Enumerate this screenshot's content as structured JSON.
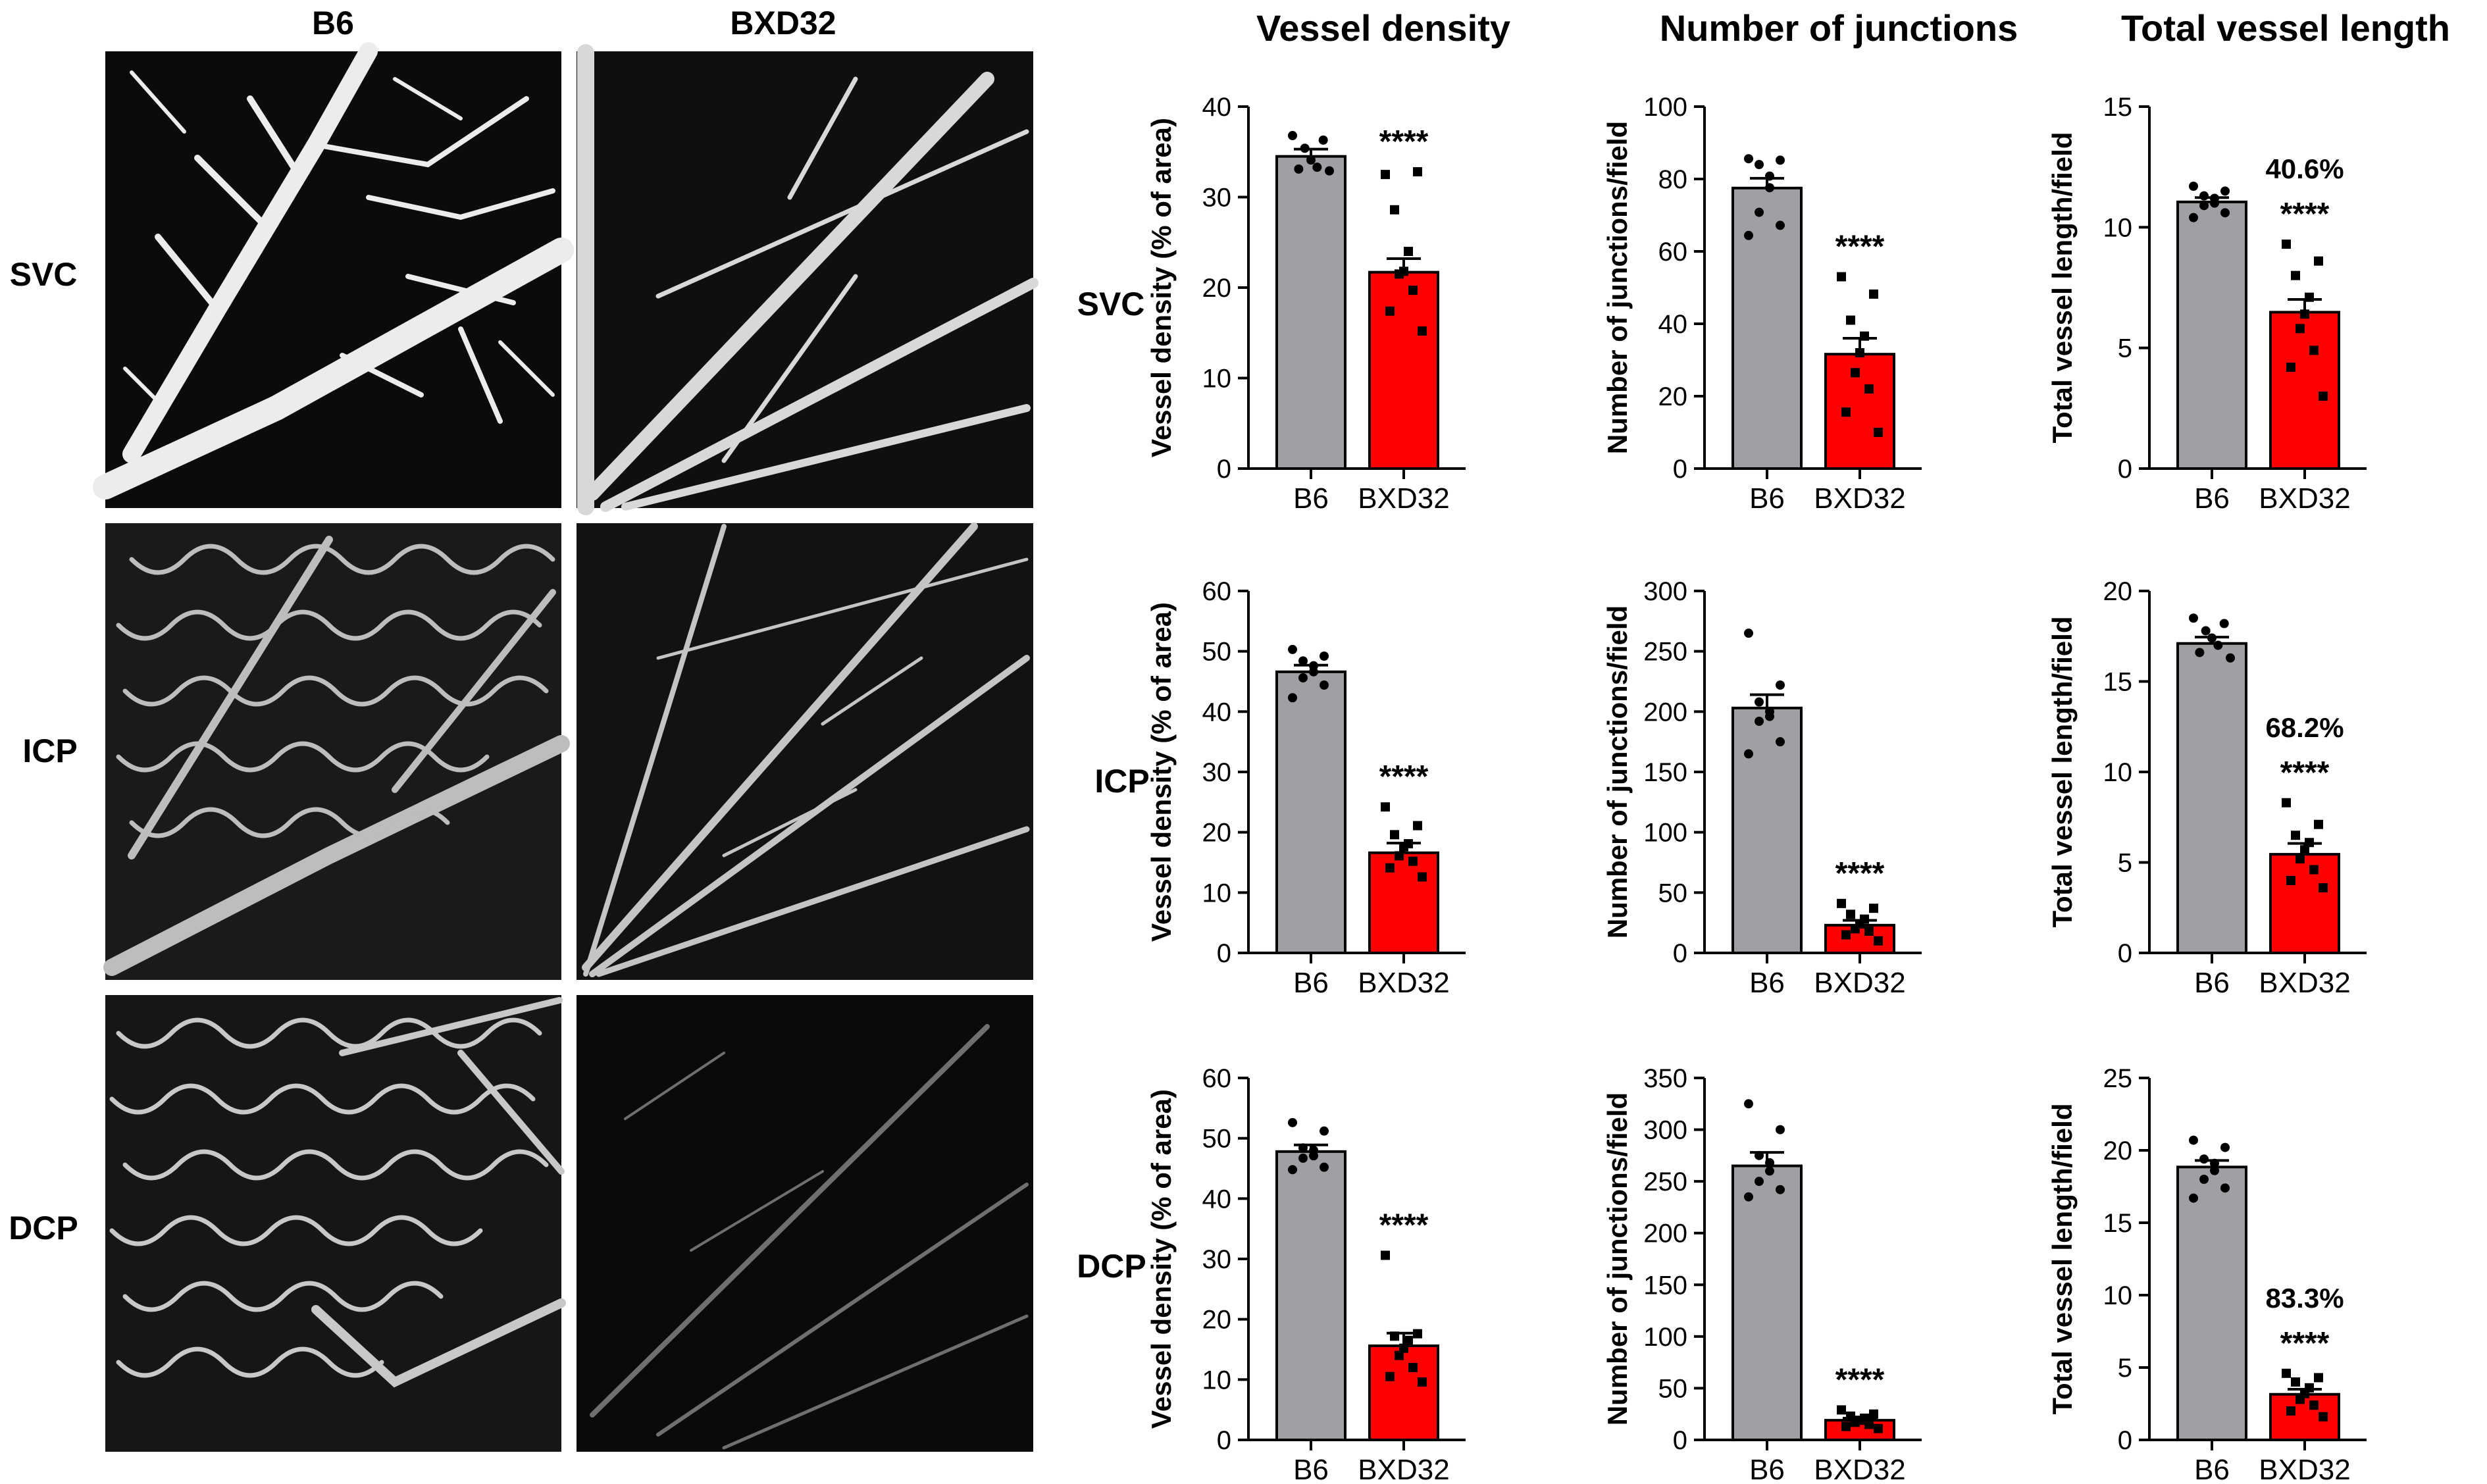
{
  "figure": {
    "image_panel": {
      "column_labels": [
        "B6",
        "BXD32"
      ],
      "row_labels": [
        "SVC",
        "ICP",
        "DCP"
      ]
    },
    "column_titles": [
      "Vessel density",
      "Number of junctions",
      "Total vessel length"
    ],
    "row_labels": [
      "SVC",
      "ICP",
      "DCP"
    ]
  },
  "colors": {
    "b6_bar": "#a0a0a4",
    "bxd32_bar": "#ff0000",
    "points": "#000000",
    "image_background": "#0b0b0b",
    "vessel": "#e6e6e6"
  },
  "chart_data": [
    {
      "type": "bar",
      "row": "SVC",
      "column": "Vessel density",
      "ylabel": "Vessel density (% of area)",
      "ylim": [
        0,
        40
      ],
      "ticks": [
        0,
        10,
        20,
        30,
        40
      ],
      "categories": [
        "B6",
        "BXD32"
      ],
      "values": [
        34.5,
        21.7
      ],
      "sem": [
        0.8,
        1.5
      ],
      "significance": [
        "",
        "****"
      ],
      "percent_label": [
        "",
        ""
      ],
      "points": [
        [
          36.8,
          36.3,
          35.4,
          34.1,
          33.3,
          33.1,
          32.9
        ],
        [
          32.5,
          32.8,
          28.6,
          24.0,
          21.8,
          21.5,
          19.7,
          17.4,
          15.2
        ]
      ]
    },
    {
      "type": "bar",
      "row": "SVC",
      "column": "Number of junctions",
      "ylabel": "Number of junctions/field",
      "ylim": [
        0,
        100
      ],
      "ticks": [
        0,
        20,
        40,
        60,
        80,
        100
      ],
      "categories": [
        "B6",
        "BXD32"
      ],
      "values": [
        77.5,
        31.6
      ],
      "sem": [
        2.7,
        4.4
      ],
      "significance": [
        "",
        "****"
      ],
      "percent_label": [
        "",
        ""
      ],
      "points": [
        [
          85.6,
          85.2,
          84.0,
          80.8,
          77.6,
          70.8,
          67.2,
          64.4
        ],
        [
          53.0,
          48.2,
          41.0,
          36.6,
          32.0,
          26.5,
          22.0,
          15.6,
          10.0
        ]
      ]
    },
    {
      "type": "bar",
      "row": "SVC",
      "column": "Total vessel length",
      "ylabel": "Total vessel length/field",
      "ylim": [
        0,
        15
      ],
      "ticks": [
        0,
        5,
        10,
        15
      ],
      "categories": [
        "B6",
        "BXD32"
      ],
      "values": [
        11.05,
        6.48
      ],
      "sem": [
        0.18,
        0.53
      ],
      "significance": [
        "",
        "****"
      ],
      "percent_label": [
        "",
        "40.6%"
      ],
      "points": [
        [
          11.7,
          11.5,
          11.3,
          11.2,
          11.0,
          10.9,
          10.6,
          10.4
        ],
        [
          9.3,
          8.6,
          8.0,
          7.1,
          6.4,
          5.8,
          4.9,
          4.2,
          3.0
        ]
      ]
    },
    {
      "type": "bar",
      "row": "ICP",
      "column": "Vessel density",
      "ylabel": "Vessel density (% of area)",
      "ylim": [
        0,
        60
      ],
      "ticks": [
        0,
        10,
        20,
        30,
        40,
        50,
        60
      ],
      "categories": [
        "B6",
        "BXD32"
      ],
      "values": [
        46.6,
        16.6
      ],
      "sem": [
        1.1,
        1.6
      ],
      "significance": [
        "",
        "****"
      ],
      "percent_label": [
        "",
        ""
      ],
      "points": [
        [
          50.3,
          49.2,
          48.4,
          47.6,
          46.6,
          45.6,
          44.4,
          42.3
        ],
        [
          24.2,
          21.1,
          19.6,
          18.1,
          17.6,
          16.1,
          15.2,
          14.1,
          12.6
        ]
      ]
    },
    {
      "type": "bar",
      "row": "ICP",
      "column": "Number of junctions",
      "ylabel": "Number of junctions/field",
      "ylim": [
        0,
        300
      ],
      "ticks": [
        0,
        50,
        100,
        150,
        200,
        250,
        300
      ],
      "categories": [
        "B6",
        "BXD32"
      ],
      "values": [
        203,
        23
      ],
      "sem": [
        11,
        4
      ],
      "significance": [
        "",
        "****"
      ],
      "percent_label": [
        "",
        ""
      ],
      "points": [
        [
          265,
          222,
          208,
          200,
          196,
          192,
          175,
          165
        ],
        [
          41,
          37,
          32,
          28,
          24,
          20,
          18,
          15,
          10
        ]
      ]
    },
    {
      "type": "bar",
      "row": "ICP",
      "column": "Total vessel length",
      "ylabel": "Total vessel length/field",
      "ylim": [
        0,
        20
      ],
      "ticks": [
        0,
        5,
        10,
        15,
        20
      ],
      "categories": [
        "B6",
        "BXD32"
      ],
      "values": [
        17.1,
        5.45
      ],
      "sem": [
        0.35,
        0.6
      ],
      "significance": [
        "",
        "****"
      ],
      "percent_label": [
        "",
        "68.2%"
      ],
      "points": [
        [
          18.5,
          18.2,
          17.8,
          17.4,
          17.0,
          16.6,
          16.3
        ],
        [
          8.3,
          7.1,
          6.5,
          6.1,
          5.7,
          5.2,
          4.6,
          4.0,
          3.6
        ]
      ]
    },
    {
      "type": "bar",
      "row": "DCP",
      "column": "Vessel density",
      "ylabel": "Vessel density (% of area)",
      "ylim": [
        0,
        60
      ],
      "ticks": [
        0,
        10,
        20,
        30,
        40,
        50,
        60
      ],
      "categories": [
        "B6",
        "BXD32"
      ],
      "values": [
        47.8,
        15.6
      ],
      "sem": [
        1.1,
        2.1
      ],
      "significance": [
        "",
        "****"
      ],
      "percent_label": [
        "",
        ""
      ],
      "points": [
        [
          52.6,
          51.2,
          48.4,
          48.0,
          47.1,
          46.7,
          45.2,
          44.8
        ],
        [
          30.6,
          17.6,
          17.2,
          16.5,
          15.2,
          14.0,
          12.0,
          10.5,
          9.6
        ]
      ]
    },
    {
      "type": "bar",
      "row": "DCP",
      "column": "Number of junctions",
      "ylabel": "Number of junctions/field",
      "ylim": [
        0,
        350
      ],
      "ticks": [
        0,
        50,
        100,
        150,
        200,
        250,
        300,
        350
      ],
      "categories": [
        "B6",
        "BXD32"
      ],
      "values": [
        265,
        19
      ],
      "sem": [
        13,
        2
      ],
      "significance": [
        "",
        "****"
      ],
      "percent_label": [
        "",
        ""
      ],
      "points": [
        [
          325,
          300,
          275,
          268,
          260,
          250,
          242,
          235
        ],
        [
          29,
          25,
          23,
          21,
          19,
          17,
          15,
          13,
          11
        ]
      ]
    },
    {
      "type": "bar",
      "row": "DCP",
      "column": "Total vessel length",
      "ylabel": "Total vessel length/field",
      "ylim": [
        0,
        25
      ],
      "ticks": [
        0,
        5,
        10,
        15,
        20,
        25
      ],
      "categories": [
        "B6",
        "BXD32"
      ],
      "values": [
        18.85,
        3.15
      ],
      "sem": [
        0.45,
        0.35
      ],
      "significance": [
        "",
        "****"
      ],
      "percent_label": [
        "",
        "83.3%"
      ],
      "points": [
        [
          20.7,
          20.2,
          19.4,
          19.1,
          18.6,
          18.0,
          17.4,
          16.7
        ],
        [
          4.6,
          4.3,
          4.0,
          3.6,
          3.2,
          2.8,
          2.4,
          2.0,
          1.6
        ]
      ]
    }
  ]
}
